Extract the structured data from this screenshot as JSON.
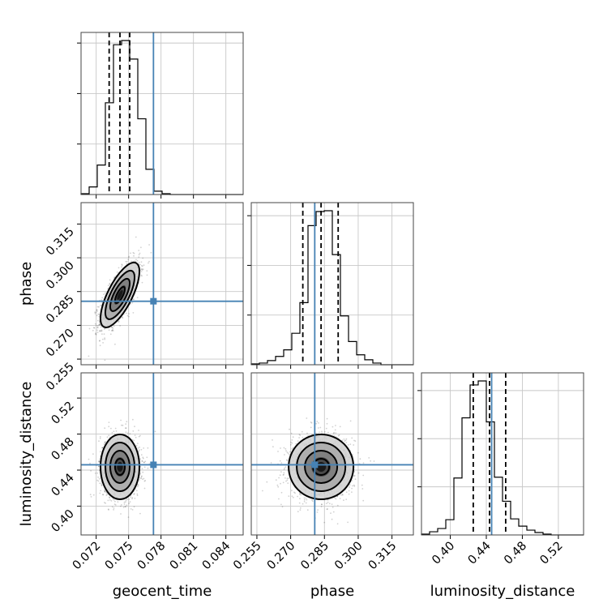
{
  "chart_data": {
    "type": "corner",
    "parameters": [
      {
        "name": "geocent_time",
        "label": "geocent_time",
        "ticks": [
          0.072,
          0.075,
          0.078,
          0.081,
          0.084
        ],
        "tick_labels": [
          "0.072",
          "0.075",
          "0.078",
          "0.081",
          "0.084"
        ],
        "range": [
          0.0706,
          0.0856
        ],
        "truth": 0.0773,
        "quantiles": [
          0.0732,
          0.0742,
          0.0751
        ],
        "hist_start": 0.0706,
        "hist_bin_width": 0.00075,
        "hist_counts": [
          1,
          9,
          35,
          109,
          178,
          183,
          161,
          90,
          30,
          4,
          1,
          0,
          0,
          0,
          0,
          0,
          0,
          0,
          0,
          0
        ]
      },
      {
        "name": "phase",
        "label": "phase",
        "ticks": [
          0.255,
          0.27,
          0.285,
          0.3,
          0.315
        ],
        "tick_labels": [
          "0.255",
          "0.270",
          "0.285",
          "0.300",
          "0.315"
        ],
        "range": [
          0.2525,
          0.3245
        ],
        "truth": 0.2807,
        "quantiles": [
          0.2754,
          0.2835,
          0.2911
        ],
        "hist_start": 0.2525,
        "hist_bin_width": 0.0036,
        "hist_counts": [
          1,
          2,
          5,
          10,
          18,
          38,
          75,
          168,
          185,
          186,
          133,
          59,
          28,
          12,
          6,
          2,
          0,
          0,
          0,
          0
        ]
      },
      {
        "name": "luminosity_distance",
        "label": "luminosity_distance",
        "ticks": [
          0.4,
          0.44,
          0.48,
          0.52
        ],
        "tick_labels": [
          "0.40",
          "0.44",
          "0.48",
          "0.52"
        ],
        "range": [
          0.368,
          0.548
        ],
        "truth": 0.4459,
        "quantiles": [
          0.4255,
          0.4436,
          0.4615
        ],
        "hist_start": 0.368,
        "hist_bin_width": 0.009,
        "hist_counts": [
          1,
          4,
          8,
          19,
          71,
          146,
          187,
          192,
          141,
          72,
          42,
          20,
          11,
          6,
          3,
          1,
          0,
          0,
          0,
          0
        ]
      }
    ],
    "pairs": [
      {
        "x": "geocent_time",
        "y": "phase",
        "mean": [
          0.0742,
          0.2835
        ],
        "sd": [
          0.0009,
          0.0072
        ],
        "corr": 0.72
      },
      {
        "x": "geocent_time",
        "y": "luminosity_distance",
        "mean": [
          0.0742,
          0.4436
        ],
        "sd": [
          0.0009,
          0.018
        ],
        "corr": 0.0
      },
      {
        "x": "phase",
        "y": "luminosity_distance",
        "mean": [
          0.2835,
          0.4436
        ],
        "sd": [
          0.0072,
          0.018
        ],
        "corr": 0.0
      }
    ],
    "contour_levels_sigma": [
      0.5,
      1.0,
      1.5,
      2.0
    ],
    "truth_color": "#4682b4",
    "grid": true
  }
}
